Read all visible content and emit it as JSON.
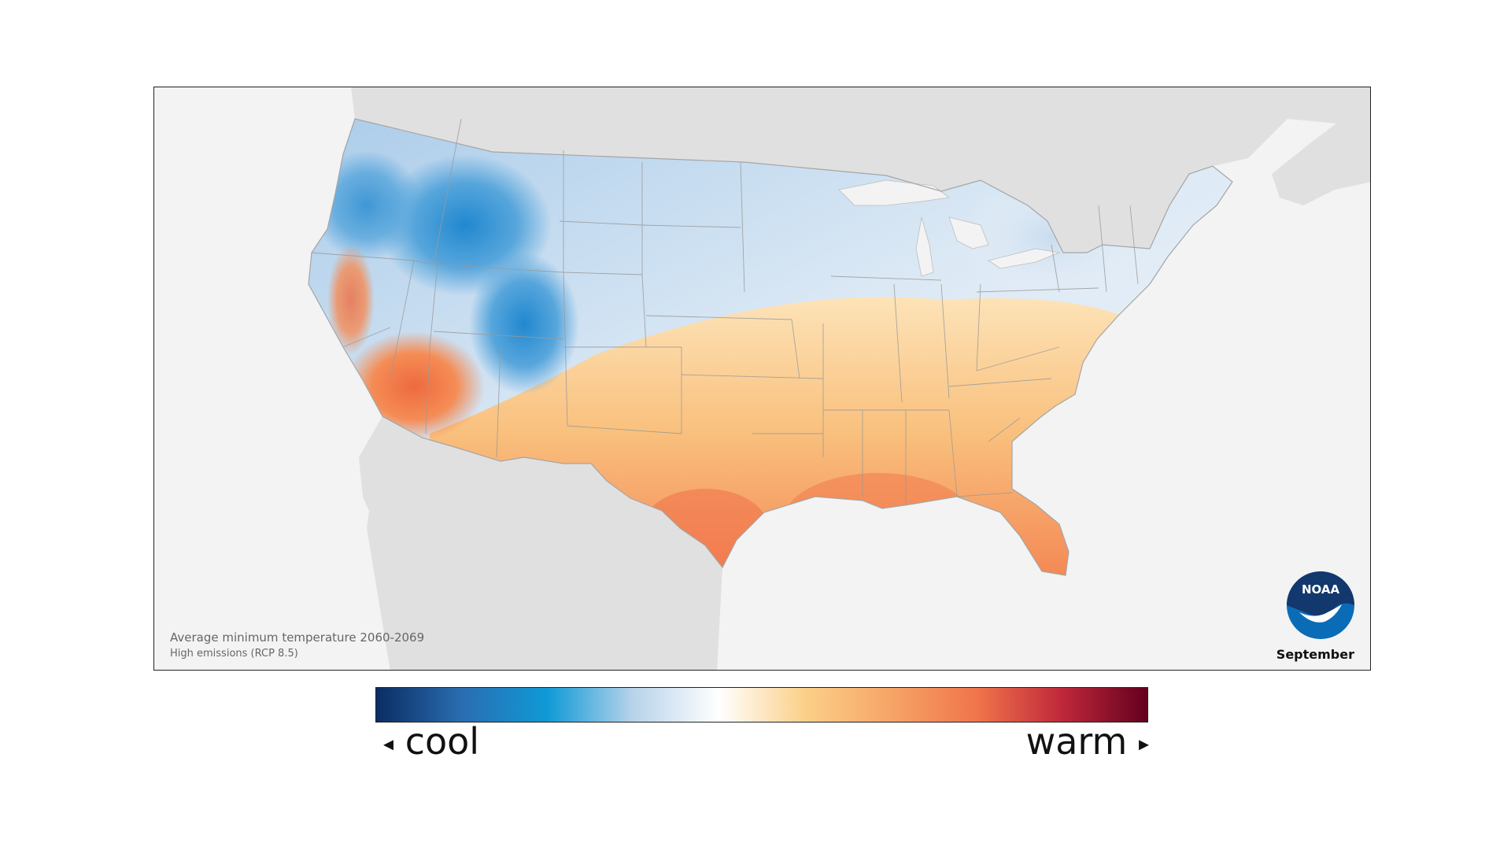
{
  "map": {
    "caption_title": "Average minimum temperature 2060-2069",
    "caption_subtitle": "High emissions (RCP 8.5)",
    "month": "September",
    "logo_text": "NOAA",
    "colors": {
      "ocean": "#f3f3f3",
      "land_outside": "#e0e0e0",
      "state_border": "#9a9a9a"
    }
  },
  "legend": {
    "cool_label": "cool",
    "warm_label": "warm",
    "cool_arrow": "◂",
    "warm_arrow": "▸",
    "colors": [
      "#0b2d63",
      "#2a6db1",
      "#0f9ad6",
      "#b8d3ea",
      "#ffffff",
      "#fbd089",
      "#f6a567",
      "#f0754b",
      "#c0283a",
      "#63001f"
    ]
  }
}
